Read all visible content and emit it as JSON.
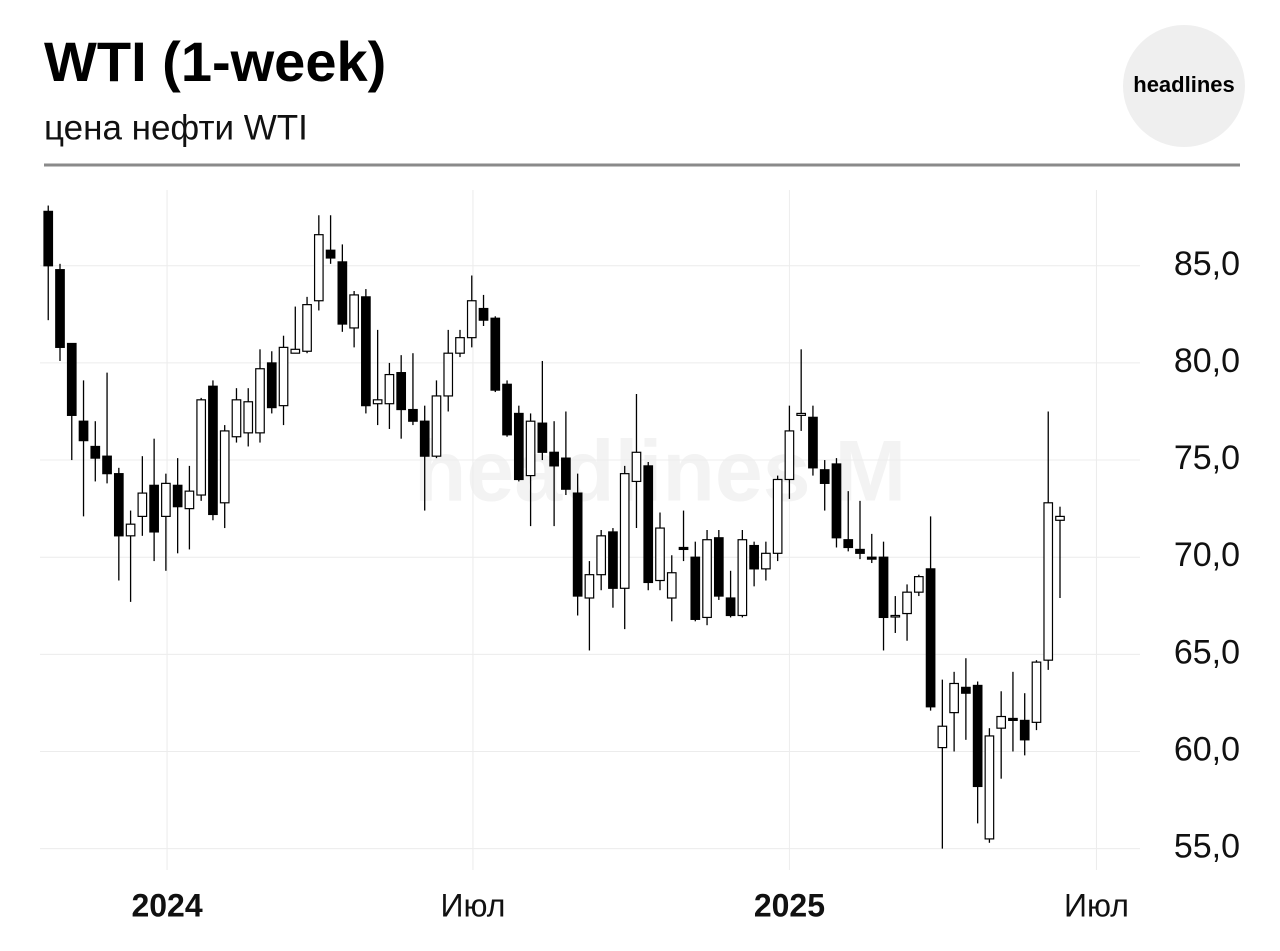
{
  "chart_data": {
    "type": "candlestick",
    "title": "WTI (1-week)",
    "subtitle": "цена нефти WTI",
    "logo": "headlines",
    "watermark": "headlines M",
    "up_color": "#ffffff",
    "down_color": "#000000",
    "grid": true,
    "xlim": [
      -0.7,
      92.8
    ],
    "xticks": [
      {
        "value": 10.1,
        "label": "2024"
      },
      {
        "value": 36.1,
        "label": "Июл"
      },
      {
        "value": 63.0,
        "label": "2025"
      },
      {
        "value": 89.1,
        "label": "Июл"
      }
    ],
    "ylim": [
      53.9,
      88.9
    ],
    "yticks": [
      {
        "value": 55,
        "label": "55,0"
      },
      {
        "value": 60,
        "label": "60,0"
      },
      {
        "value": 65,
        "label": "65,0"
      },
      {
        "value": 70,
        "label": "70,0"
      },
      {
        "value": 75,
        "label": "75,0"
      },
      {
        "value": 80,
        "label": "80,0"
      },
      {
        "value": 85,
        "label": "85,0"
      }
    ],
    "series": [
      {
        "name": "WTI",
        "open": [
          87.8,
          84.8,
          81.0,
          77.0,
          75.7,
          75.2,
          74.3,
          71.1,
          72.1,
          73.7,
          72.1,
          73.7,
          72.5,
          73.2,
          78.8,
          72.8,
          76.2,
          76.4,
          76.4,
          80.0,
          77.8,
          80.5,
          80.6,
          83.2,
          85.8,
          85.2,
          81.8,
          83.4,
          77.9,
          77.9,
          79.5,
          77.6,
          77.0,
          75.2,
          78.3,
          80.5,
          81.3,
          82.8,
          82.3,
          78.9,
          77.4,
          74.2,
          76.9,
          75.4,
          75.1,
          73.3,
          67.9,
          69.1,
          71.3,
          68.4,
          73.9,
          74.7,
          68.8,
          67.9,
          70.5,
          70.0,
          66.9,
          71.0,
          67.9,
          67.0,
          70.6,
          69.4,
          70.2,
          74.0,
          77.3,
          77.2,
          74.5,
          74.8,
          70.9,
          70.4,
          70.0,
          70.0,
          67.0,
          67.1,
          68.2,
          69.4,
          60.2,
          62.0,
          63.3,
          63.4,
          55.5,
          61.2,
          61.7,
          61.6,
          61.5,
          64.7,
          71.9
        ],
        "high": [
          88.1,
          85.1,
          81.0,
          79.1,
          77.0,
          79.5,
          74.6,
          72.4,
          75.2,
          76.1,
          74.3,
          75.1,
          74.7,
          78.2,
          79.1,
          76.8,
          78.7,
          78.7,
          80.7,
          80.6,
          81.4,
          82.9,
          83.4,
          87.6,
          87.6,
          86.1,
          83.7,
          83.8,
          81.7,
          80.0,
          80.4,
          80.5,
          77.8,
          79.1,
          81.7,
          81.7,
          84.5,
          83.5,
          82.4,
          79.1,
          77.8,
          77.4,
          80.1,
          77.0,
          77.5,
          74.3,
          69.8,
          71.4,
          71.5,
          74.7,
          78.4,
          74.9,
          72.3,
          70.1,
          72.4,
          70.8,
          71.4,
          71.4,
          69.3,
          71.4,
          70.8,
          70.8,
          74.2,
          77.8,
          80.7,
          77.8,
          75.0,
          75.1,
          73.4,
          72.9,
          71.2,
          70.8,
          68.0,
          68.6,
          69.1,
          72.1,
          63.7,
          64.1,
          64.8,
          63.6,
          61.2,
          63.1,
          64.1,
          63.0,
          64.7,
          77.5,
          72.6
        ],
        "low": [
          82.2,
          80.1,
          75.0,
          72.1,
          73.9,
          73.8,
          68.8,
          67.7,
          71.1,
          69.8,
          69.3,
          70.2,
          70.4,
          72.9,
          71.9,
          71.5,
          75.9,
          75.7,
          75.9,
          77.4,
          76.8,
          80.5,
          80.5,
          82.7,
          85.1,
          81.6,
          80.8,
          77.4,
          76.8,
          76.6,
          76.1,
          76.8,
          72.4,
          75.1,
          77.5,
          80.3,
          80.8,
          81.9,
          78.5,
          76.2,
          73.9,
          71.6,
          75.0,
          71.6,
          73.2,
          67.0,
          65.2,
          68.3,
          67.4,
          66.3,
          71.5,
          68.3,
          68.3,
          66.7,
          69.8,
          66.7,
          66.5,
          67.8,
          66.9,
          66.9,
          68.5,
          68.8,
          69.8,
          73.0,
          76.5,
          74.2,
          72.4,
          70.5,
          70.3,
          69.9,
          69.7,
          65.2,
          66.1,
          65.7,
          68.0,
          62.1,
          55.0,
          60.0,
          60.6,
          56.3,
          55.3,
          58.6,
          60.0,
          59.8,
          61.1,
          64.2,
          67.9
        ],
        "close": [
          85.0,
          80.8,
          77.3,
          76.0,
          75.1,
          74.3,
          71.1,
          71.7,
          73.3,
          71.3,
          73.8,
          72.6,
          73.4,
          78.1,
          72.2,
          76.5,
          78.1,
          78.0,
          79.7,
          77.7,
          80.8,
          80.7,
          83.0,
          86.6,
          85.4,
          82.0,
          83.5,
          77.8,
          78.1,
          79.4,
          77.6,
          77.0,
          75.2,
          78.3,
          80.5,
          81.3,
          83.2,
          82.2,
          78.6,
          76.3,
          74.0,
          77.0,
          75.4,
          74.7,
          73.5,
          68.0,
          69.1,
          71.1,
          68.4,
          74.3,
          75.4,
          68.7,
          71.5,
          69.2,
          70.4,
          66.8,
          70.9,
          68.0,
          67.0,
          70.9,
          69.4,
          70.2,
          74.0,
          76.5,
          77.4,
          74.6,
          73.8,
          71.0,
          70.5,
          70.2,
          69.9,
          66.9,
          67.0,
          68.2,
          69.0,
          62.3,
          61.3,
          63.5,
          63.0,
          58.2,
          60.8,
          61.8,
          61.6,
          60.6,
          64.6,
          72.8,
          72.1
        ]
      }
    ]
  }
}
